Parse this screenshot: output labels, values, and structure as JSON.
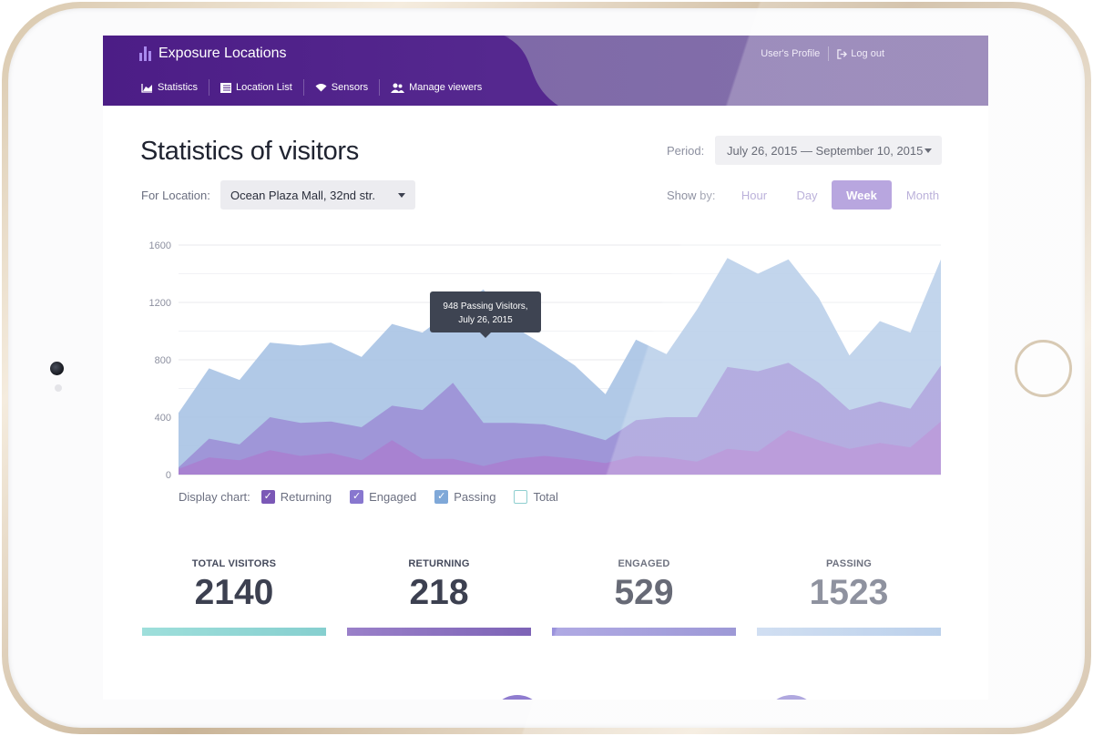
{
  "app": {
    "title": "Exposure Locations"
  },
  "header": {
    "profile_link": "User's Profile",
    "logout_link": "Log out"
  },
  "nav": {
    "items": [
      {
        "label": "Statistics",
        "icon": "area-chart-icon"
      },
      {
        "label": "Location List",
        "icon": "list-icon"
      },
      {
        "label": "Sensors",
        "icon": "wifi-icon"
      },
      {
        "label": "Manage viewers",
        "icon": "users-icon"
      }
    ]
  },
  "page": {
    "title": "Statistics of visitors"
  },
  "filters": {
    "period_label": "Period:",
    "period_value": "July 26, 2015 — September 10, 2015",
    "location_label": "For Location:",
    "location_value": "Ocean Plaza Mall, 32nd str.",
    "showby_label": "Show by:",
    "showby_options": [
      "Hour",
      "Day",
      "Week",
      "Month"
    ],
    "showby_selected": "Week"
  },
  "legend": {
    "label": "Display chart:",
    "items": [
      {
        "label": "Returning",
        "checked": true,
        "color": "#7b58b6"
      },
      {
        "label": "Engaged",
        "checked": true,
        "color": "#8877cf"
      },
      {
        "label": "Passing",
        "checked": true,
        "color": "#7fa8d8"
      },
      {
        "label": "Total",
        "checked": false,
        "color": "#8fcfd0"
      }
    ]
  },
  "chart_data": {
    "type": "area",
    "y_ticks": [
      "1600",
      "1200",
      "800",
      "400",
      "0"
    ],
    "ylim": [
      0,
      1600
    ],
    "x_count": 23,
    "series": [
      {
        "name": "Passing",
        "color": "#a9c3e4",
        "values": [
          430,
          740,
          660,
          920,
          900,
          920,
          820,
          1050,
          990,
          1150,
          1290,
          1030,
          900,
          760,
          560,
          940,
          840,
          1150,
          1510,
          1400,
          1500,
          1230,
          830,
          1070,
          990,
          1500
        ]
      },
      {
        "name": "Engaged",
        "color": "#9d90d6",
        "values": [
          50,
          250,
          210,
          400,
          360,
          370,
          330,
          480,
          450,
          640,
          360,
          360,
          350,
          300,
          240,
          380,
          400,
          400,
          750,
          720,
          780,
          640,
          450,
          510,
          460,
          760
        ]
      },
      {
        "name": "Returning",
        "color": "#a97fd0",
        "values": [
          40,
          120,
          100,
          170,
          130,
          150,
          100,
          240,
          110,
          110,
          60,
          110,
          130,
          110,
          80,
          130,
          120,
          90,
          180,
          160,
          310,
          240,
          180,
          220,
          190,
          370
        ]
      }
    ],
    "tooltip": {
      "line1": "948 Passing Visitors,",
      "line2": "July 26, 2015"
    }
  },
  "stats": [
    {
      "label": "TOTAL VISITORS",
      "value": "2140",
      "color": "#8fd3d2"
    },
    {
      "label": "RETURNING",
      "value": "218",
      "color": "#8a6cbf"
    },
    {
      "label": "ENGAGED",
      "value": "529",
      "color": "#8d86d4"
    },
    {
      "label": "PASSING",
      "value": "1523",
      "color": "#b9cfe9"
    }
  ],
  "colors": {
    "header": "#4c1d86",
    "accent": "#a48dd6"
  }
}
